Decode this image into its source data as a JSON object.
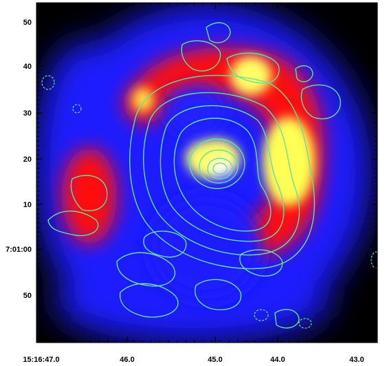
{
  "figure": {
    "colormap": [
      "#000000",
      "#1a1aff",
      "#ff1010",
      "#ffff66",
      "#ffffff"
    ],
    "contour_color": "#66e0a0",
    "frame_color": "#000000",
    "ra_ticks": [
      "15:16:47.0",
      "46.0",
      "45.0",
      "44.0",
      "43.0"
    ],
    "dec_ticks": [
      "50",
      "40",
      "30",
      "20",
      "10",
      "7:01:00",
      "50"
    ]
  }
}
